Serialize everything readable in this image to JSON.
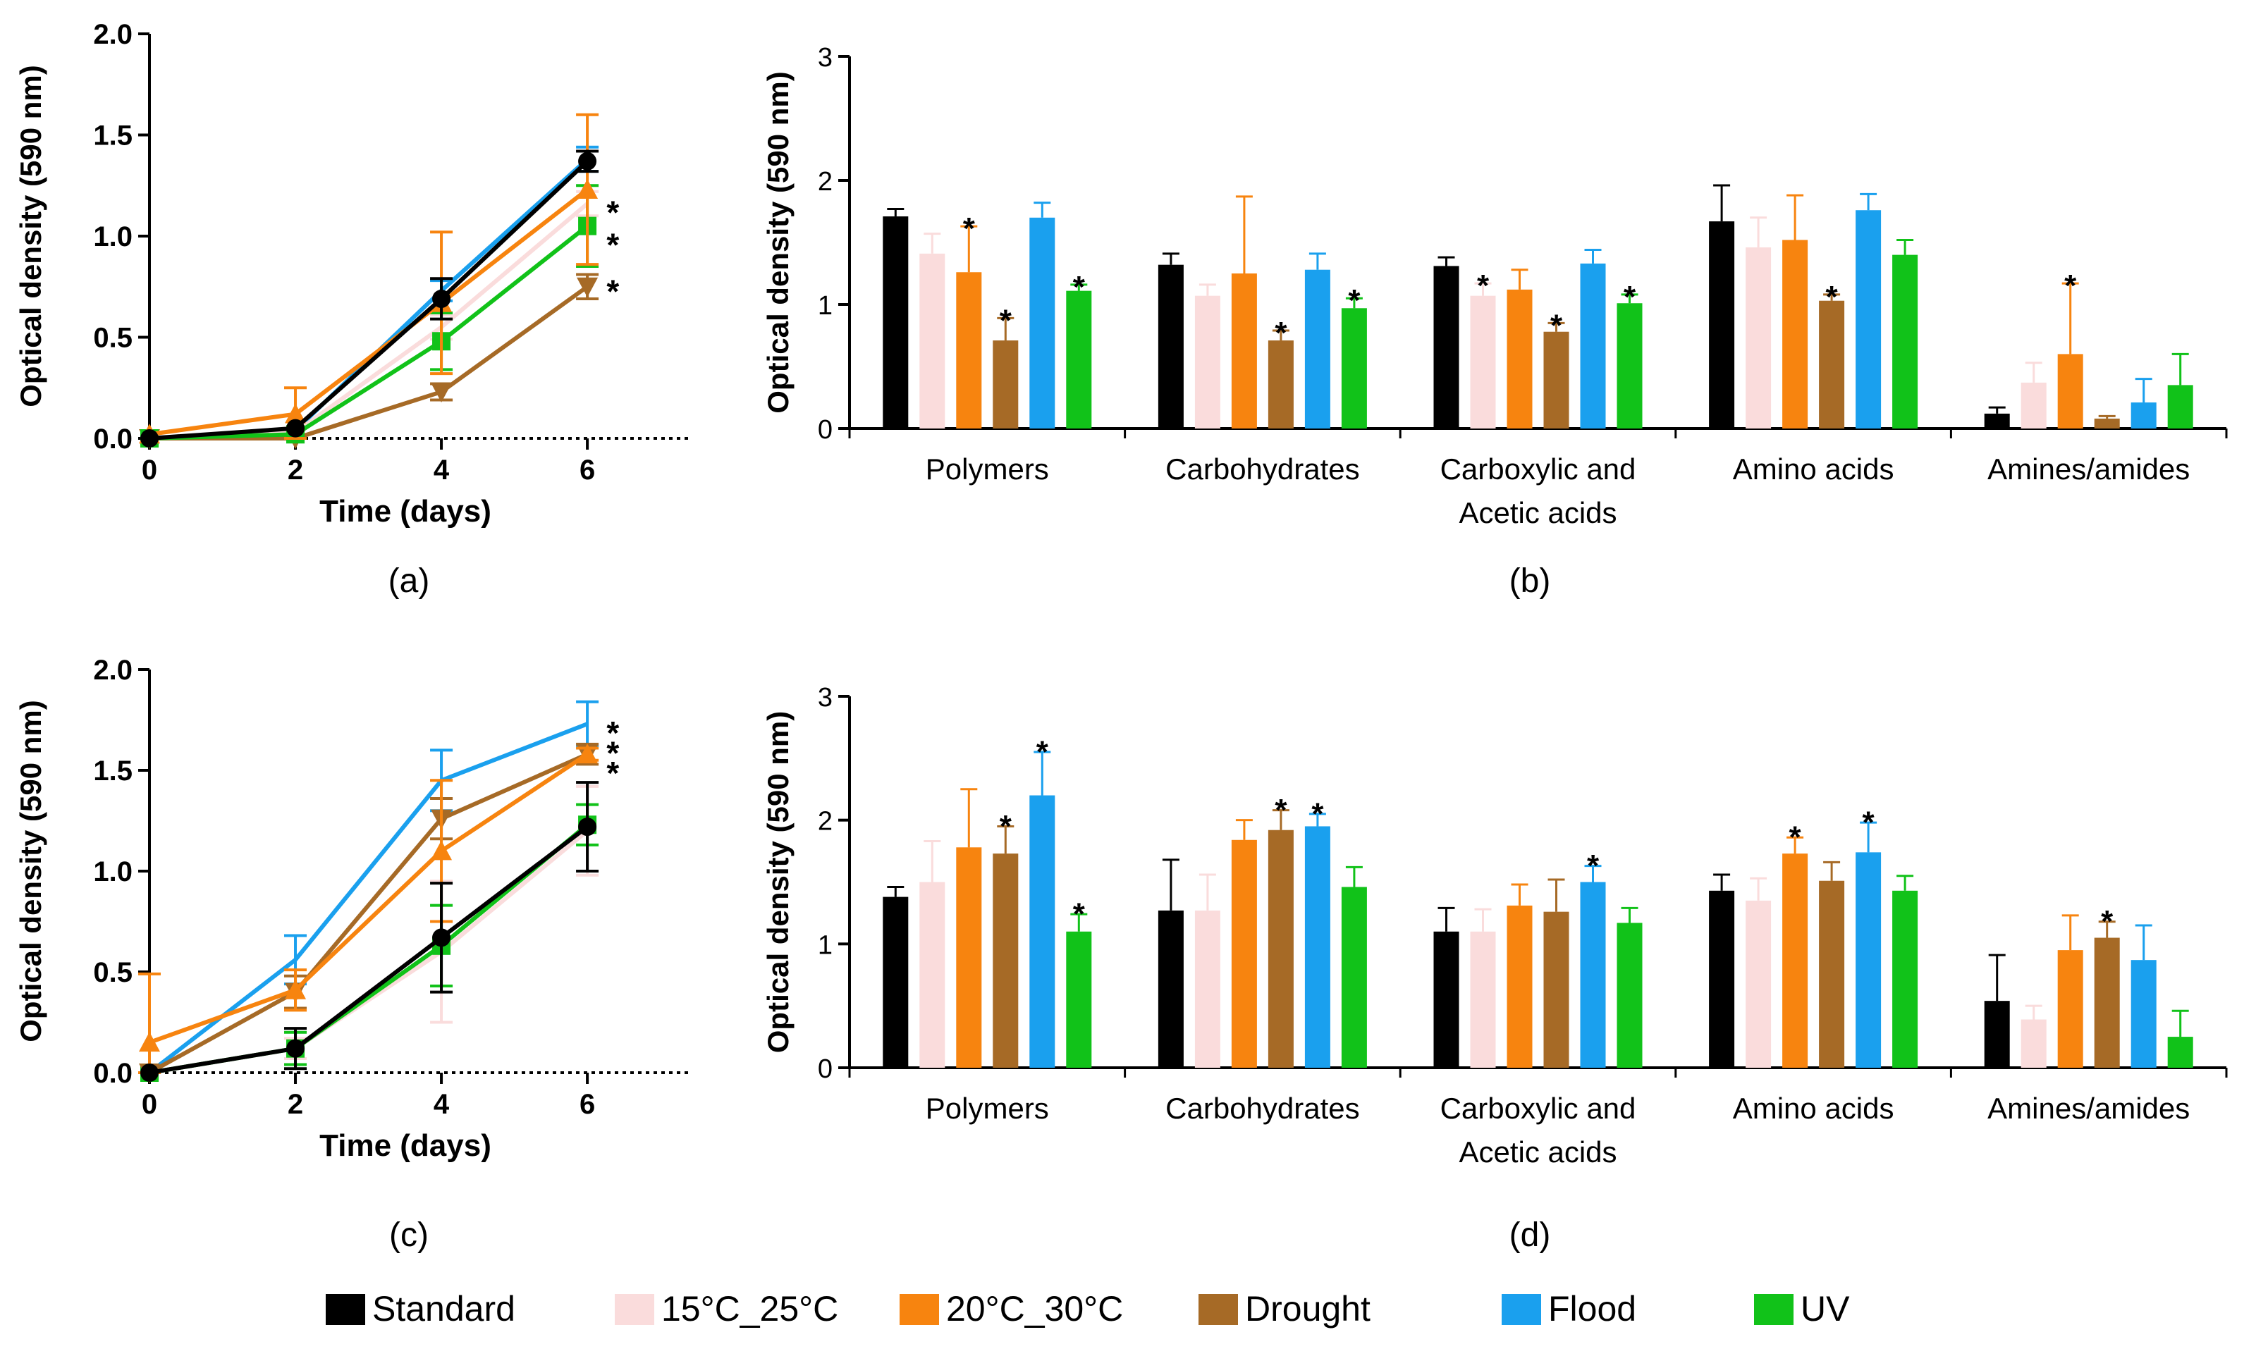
{
  "colors": {
    "Standard": "#000000",
    "15°C_25°C": "#fadcdc",
    "20°C_30°C": "#f7840f",
    "Drought": "#a66a26",
    "Flood": "#1aa0ee",
    "UV": "#11c219"
  },
  "legend": {
    "items": [
      "Standard",
      "15°C_25°C",
      "20°C_30°C",
      "Drought",
      "Flood",
      "UV"
    ]
  },
  "chart_data": [
    {
      "id": "a",
      "panel_label": "(a)",
      "type": "line",
      "title": "",
      "xlabel": "Time (days)",
      "ylabel": "Optical density (590 nm)",
      "x": [
        0,
        2,
        4,
        6
      ],
      "xlim": [
        0,
        7.4
      ],
      "ylim": [
        0,
        2.0
      ],
      "xticks": [
        "0",
        "2",
        "4",
        "6"
      ],
      "yticks": [
        "0.0",
        "0.5",
        "1.0",
        "1.5",
        "2.0"
      ],
      "series": [
        {
          "name": "Flood",
          "marker": "none",
          "values": [
            0.0,
            0.04,
            0.73,
            1.38
          ],
          "errors": [
            0.0,
            0.0,
            0.05,
            0.06
          ]
        },
        {
          "name": "15°C_25°C",
          "marker": "none",
          "values": [
            0.0,
            0.03,
            0.55,
            1.16
          ],
          "errors": [
            0.0,
            0.0,
            0.06,
            0.06
          ]
        },
        {
          "name": "Drought",
          "marker": "triangle-down",
          "values": [
            0.0,
            0.0,
            0.23,
            0.75
          ],
          "errors": [
            0.0,
            0.0,
            0.04,
            0.06
          ]
        },
        {
          "name": "UV",
          "marker": "square",
          "values": [
            0.0,
            0.02,
            0.48,
            1.05
          ],
          "errors": [
            0.0,
            0.0,
            0.14,
            0.2
          ]
        },
        {
          "name": "20°C_30°C",
          "marker": "triangle-up",
          "values": [
            0.02,
            0.12,
            0.67,
            1.23
          ],
          "errors": [
            0.0,
            0.13,
            0.35,
            0.37
          ]
        },
        {
          "name": "Standard",
          "marker": "circle",
          "values": [
            0.0,
            0.05,
            0.69,
            1.37
          ],
          "errors": [
            0.0,
            0.0,
            0.1,
            0.05
          ]
        }
      ],
      "annotations": [
        {
          "text": "*",
          "x": 6.35,
          "y": 1.13
        },
        {
          "text": "*",
          "x": 6.35,
          "y": 0.97
        },
        {
          "text": "*",
          "x": 6.35,
          "y": 0.74
        }
      ]
    },
    {
      "id": "b",
      "panel_label": "(b)",
      "type": "bar",
      "title": "",
      "xlabel": "",
      "ylabel": "Optical density (590 nm)",
      "categories": [
        "Polymers",
        "Carbohydrates",
        "Carboxylic and\nAcetic acids",
        "Amino acids",
        "Amines/amides"
      ],
      "ylim": [
        0,
        3
      ],
      "yticks": [
        "0",
        "1",
        "2",
        "3"
      ],
      "series": [
        {
          "name": "Standard",
          "values": [
            1.71,
            1.32,
            1.31,
            1.67,
            0.12
          ],
          "errors": [
            0.06,
            0.09,
            0.07,
            0.29,
            0.05
          ]
        },
        {
          "name": "15°C_25°C",
          "values": [
            1.41,
            1.07,
            1.07,
            1.46,
            0.37
          ],
          "errors": [
            0.16,
            0.09,
            0.1,
            0.24,
            0.16
          ]
        },
        {
          "name": "20°C_30°C",
          "values": [
            1.26,
            1.25,
            1.12,
            1.52,
            0.6
          ],
          "errors": [
            0.37,
            0.62,
            0.16,
            0.36,
            0.57
          ]
        },
        {
          "name": "Drought",
          "values": [
            0.71,
            0.71,
            0.78,
            1.03,
            0.08
          ],
          "errors": [
            0.18,
            0.08,
            0.07,
            0.05,
            0.02
          ]
        },
        {
          "name": "Flood",
          "values": [
            1.7,
            1.28,
            1.33,
            1.76,
            0.21
          ],
          "errors": [
            0.12,
            0.13,
            0.11,
            0.13,
            0.19
          ]
        },
        {
          "name": "UV",
          "values": [
            1.11,
            0.97,
            1.01,
            1.4,
            0.35
          ],
          "errors": [
            0.05,
            0.08,
            0.07,
            0.12,
            0.25
          ]
        }
      ],
      "annotations": [
        {
          "text": "*",
          "group": 0,
          "bar": 2,
          "y": 1.63
        },
        {
          "text": "*",
          "group": 0,
          "bar": 3,
          "y": 0.89
        },
        {
          "text": "*",
          "group": 0,
          "bar": 5,
          "y": 1.16
        },
        {
          "text": "*",
          "group": 1,
          "bar": 3,
          "y": 0.79
        },
        {
          "text": "*",
          "group": 1,
          "bar": 5,
          "y": 1.05
        },
        {
          "text": "*",
          "group": 2,
          "bar": 1,
          "y": 1.17
        },
        {
          "text": "*",
          "group": 2,
          "bar": 3,
          "y": 0.85
        },
        {
          "text": "*",
          "group": 2,
          "bar": 5,
          "y": 1.08
        },
        {
          "text": "*",
          "group": 3,
          "bar": 3,
          "y": 1.08
        },
        {
          "text": "*",
          "group": 4,
          "bar": 2,
          "y": 1.17
        }
      ]
    },
    {
      "id": "c",
      "panel_label": "(c)",
      "type": "line",
      "title": "",
      "xlabel": "Time (days)",
      "ylabel": "Optical density (590 nm)",
      "x": [
        0,
        2,
        4,
        6
      ],
      "xlim": [
        0,
        7.4
      ],
      "ylim": [
        0,
        2.0
      ],
      "xticks": [
        "0",
        "2",
        "4",
        "6"
      ],
      "yticks": [
        "0.0",
        "0.5",
        "1.0",
        "1.5",
        "2.0"
      ],
      "series": [
        {
          "name": "Flood",
          "marker": "none",
          "values": [
            0.0,
            0.56,
            1.45,
            1.73
          ],
          "errors": [
            0.0,
            0.12,
            0.15,
            0.11
          ]
        },
        {
          "name": "15°C_25°C",
          "marker": "none",
          "values": [
            0.0,
            0.12,
            0.6,
            1.2
          ],
          "errors": [
            0.0,
            0.05,
            0.35,
            0.22
          ]
        },
        {
          "name": "UV",
          "marker": "square",
          "values": [
            0.0,
            0.12,
            0.63,
            1.23
          ],
          "errors": [
            0.0,
            0.08,
            0.2,
            0.1
          ]
        },
        {
          "name": "Drought",
          "marker": "triangle-down",
          "values": [
            0.0,
            0.4,
            1.26,
            1.58
          ],
          "errors": [
            0.0,
            0.08,
            0.1,
            0.05
          ]
        },
        {
          "name": "20°C_30°C",
          "marker": "triangle-up",
          "values": [
            0.15,
            0.41,
            1.1,
            1.58
          ],
          "errors": [
            0.34,
            0.1,
            0.35,
            0.03
          ]
        },
        {
          "name": "Standard",
          "marker": "circle",
          "values": [
            0.0,
            0.12,
            0.67,
            1.22
          ],
          "errors": [
            0.0,
            0.1,
            0.27,
            0.22
          ]
        }
      ],
      "annotations": [
        {
          "text": "*",
          "x": 6.35,
          "y": 1.7
        },
        {
          "text": "*",
          "x": 6.35,
          "y": 1.6
        },
        {
          "text": "*",
          "x": 6.35,
          "y": 1.5
        }
      ]
    },
    {
      "id": "d",
      "panel_label": "(d)",
      "type": "bar",
      "title": "",
      "xlabel": "",
      "ylabel": "Optical density (590 nm)",
      "categories": [
        "Polymers",
        "Carbohydrates",
        "Carboxylic and\nAcetic acids",
        "Amino acids",
        "Amines/amides"
      ],
      "ylim": [
        0,
        3
      ],
      "yticks": [
        "0",
        "1",
        "2",
        "3"
      ],
      "series": [
        {
          "name": "Standard",
          "values": [
            1.38,
            1.27,
            1.1,
            1.43,
            0.54
          ],
          "errors": [
            0.08,
            0.41,
            0.19,
            0.13,
            0.37
          ]
        },
        {
          "name": "15°C_25°C",
          "values": [
            1.5,
            1.27,
            1.1,
            1.35,
            0.39
          ],
          "errors": [
            0.33,
            0.29,
            0.18,
            0.18,
            0.11
          ]
        },
        {
          "name": "20°C_30°C",
          "values": [
            1.78,
            1.84,
            1.31,
            1.73,
            0.95
          ],
          "errors": [
            0.47,
            0.16,
            0.17,
            0.13,
            0.28
          ]
        },
        {
          "name": "Drought",
          "values": [
            1.73,
            1.92,
            1.26,
            1.51,
            1.05
          ],
          "errors": [
            0.22,
            0.16,
            0.26,
            0.15,
            0.13
          ]
        },
        {
          "name": "Flood",
          "values": [
            2.2,
            1.95,
            1.5,
            1.74,
            0.87
          ],
          "errors": [
            0.35,
            0.1,
            0.13,
            0.24,
            0.28
          ]
        },
        {
          "name": "UV",
          "values": [
            1.1,
            1.46,
            1.17,
            1.43,
            0.25
          ],
          "errors": [
            0.14,
            0.16,
            0.12,
            0.12,
            0.21
          ]
        }
      ],
      "annotations": [
        {
          "text": "*",
          "group": 0,
          "bar": 3,
          "y": 1.97
        },
        {
          "text": "*",
          "group": 0,
          "bar": 4,
          "y": 2.57
        },
        {
          "text": "*",
          "group": 0,
          "bar": 5,
          "y": 1.26
        },
        {
          "text": "*",
          "group": 1,
          "bar": 3,
          "y": 2.1
        },
        {
          "text": "*",
          "group": 1,
          "bar": 4,
          "y": 2.07
        },
        {
          "text": "*",
          "group": 2,
          "bar": 4,
          "y": 1.65
        },
        {
          "text": "*",
          "group": 3,
          "bar": 2,
          "y": 1.88
        },
        {
          "text": "*",
          "group": 3,
          "bar": 4,
          "y": 2.0
        },
        {
          "text": "*",
          "group": 4,
          "bar": 3,
          "y": 1.2
        }
      ]
    }
  ]
}
